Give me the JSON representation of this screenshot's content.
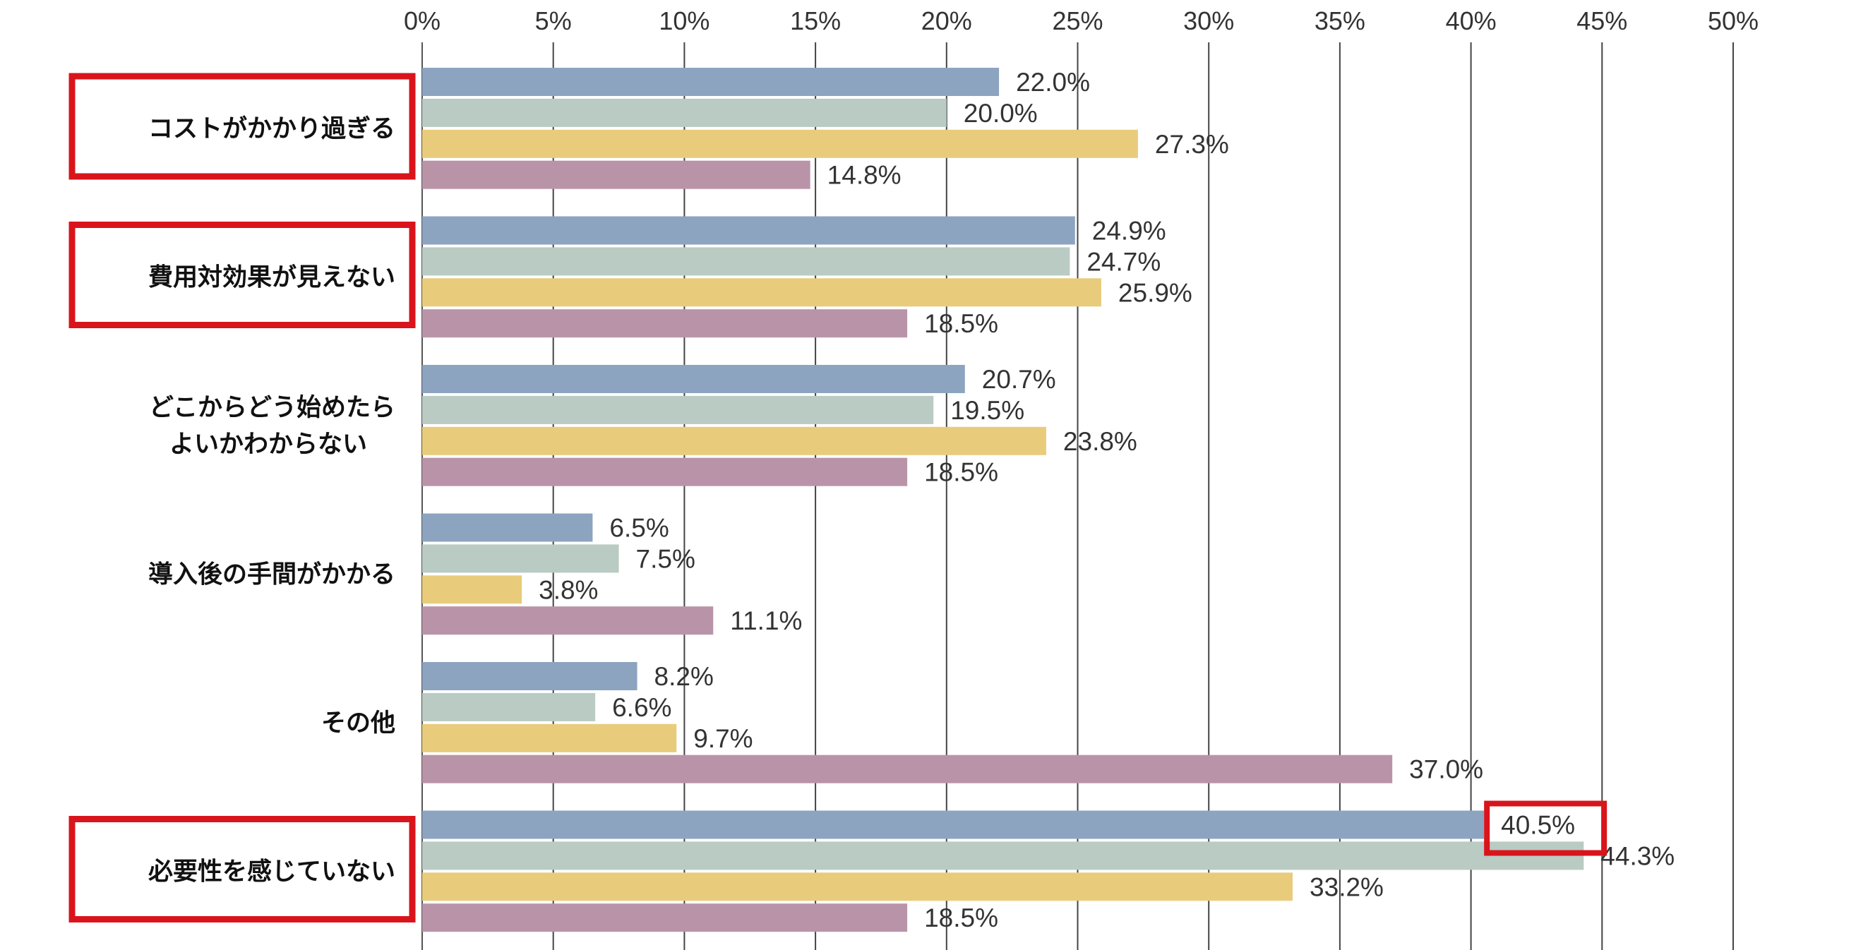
{
  "chart_data": {
    "type": "bar",
    "orientation": "horizontal",
    "categories": [
      "コストがかかり過ぎる",
      "費用対効果が見えない",
      "どこからどう始めたらよいかわからない",
      "導入後の手間がかかる",
      "その他",
      "必要性を感じていない"
    ],
    "category_lines": [
      [
        "コストがかかり過ぎる"
      ],
      [
        "費用対効果が見えない"
      ],
      [
        "どこからどう始めたら",
        "よいかわからない"
      ],
      [
        "導入後の手間がかかる"
      ],
      [
        "その他"
      ],
      [
        "必要性を感じていない"
      ]
    ],
    "series": [
      {
        "color": "#8da4c0",
        "values": [
          22.0,
          24.9,
          20.7,
          6.5,
          8.2,
          40.5
        ]
      },
      {
        "color": "#b9cbc3",
        "values": [
          20.0,
          24.7,
          19.5,
          7.5,
          6.6,
          44.3
        ]
      },
      {
        "color": "#e8cc7c",
        "values": [
          27.3,
          25.9,
          23.8,
          3.8,
          9.7,
          33.2
        ]
      },
      {
        "color": "#b994a8",
        "values": [
          14.8,
          18.5,
          18.5,
          11.1,
          37.0,
          18.5
        ]
      }
    ],
    "xlim": [
      0,
      50
    ],
    "xticks": [
      "0%",
      "5%",
      "10%",
      "15%",
      "20%",
      "25%",
      "30%",
      "35%",
      "40%",
      "45%",
      "50%"
    ],
    "grid": true,
    "axis_position": "top",
    "highlight_color": "#d9141b",
    "highlighted_categories": [
      0,
      1,
      5
    ],
    "highlighted_value": {
      "category": 5,
      "series": 0
    }
  }
}
